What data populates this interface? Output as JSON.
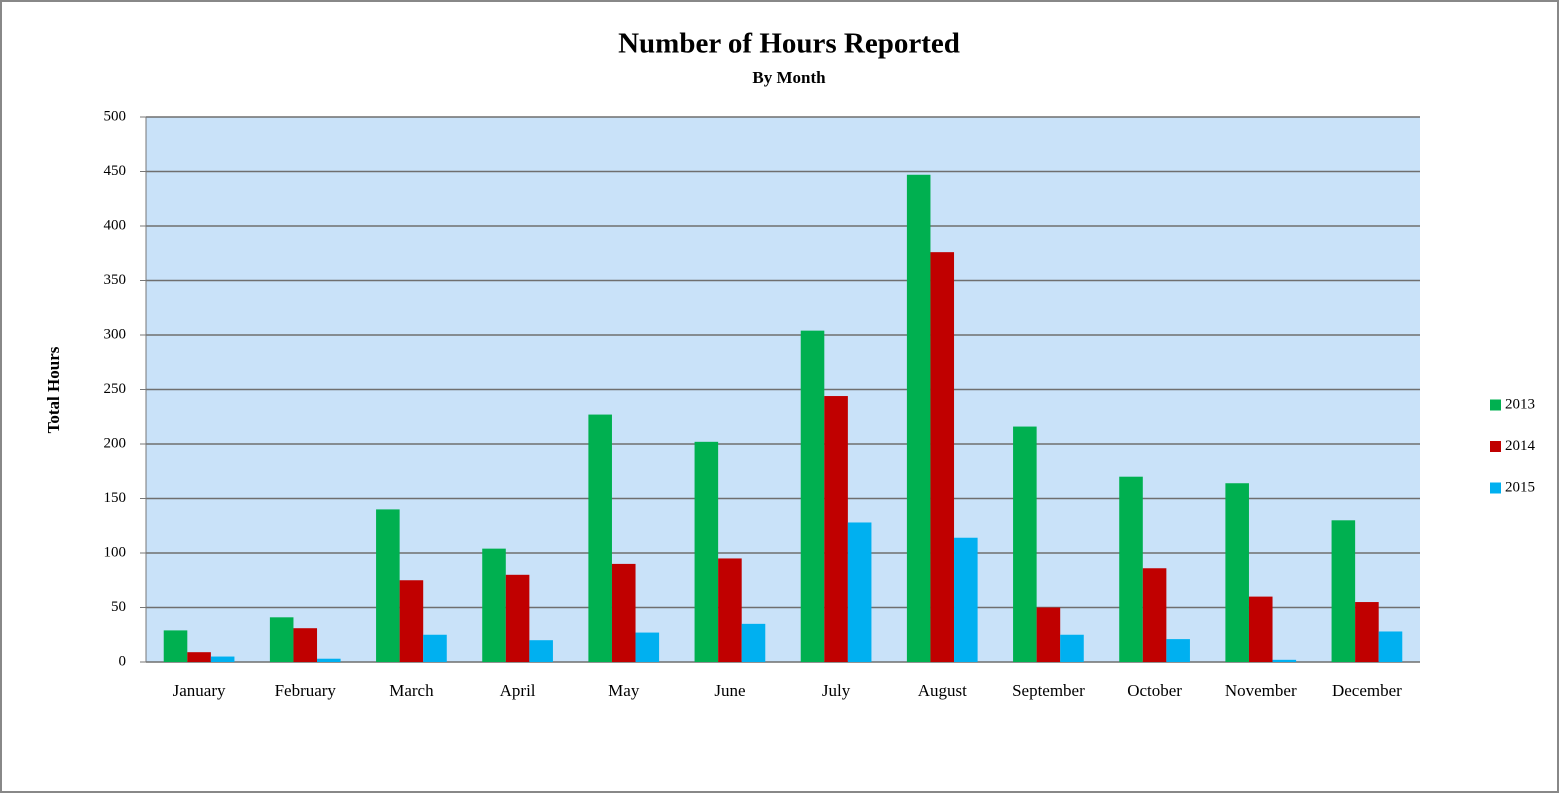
{
  "chart_data": {
    "type": "bar",
    "title": "Number of Hours Reported",
    "subtitle": "By Month",
    "y_label": "Total Hours",
    "categories": [
      "January",
      "February",
      "March",
      "April",
      "May",
      "June",
      "July",
      "August",
      "September",
      "October",
      "November",
      "December"
    ],
    "series": [
      {
        "name": "2013",
        "color": "#00b050",
        "values": [
          29,
          41,
          140,
          104,
          227,
          202,
          304,
          447,
          216,
          170,
          164,
          130
        ]
      },
      {
        "name": "2014",
        "color": "#c00000",
        "values": [
          9,
          31,
          75,
          80,
          90,
          95,
          244,
          376,
          50,
          86,
          60,
          55
        ]
      },
      {
        "name": "2015",
        "color": "#00b0f0",
        "values": [
          5,
          3,
          25,
          20,
          27,
          35,
          128,
          114,
          25,
          21,
          2,
          28
        ]
      }
    ],
    "ylim": [
      0,
      500
    ],
    "yticks": [
      0,
      50,
      100,
      150,
      200,
      250,
      300,
      350,
      400,
      450,
      500
    ],
    "grid": true,
    "legend": "right"
  }
}
